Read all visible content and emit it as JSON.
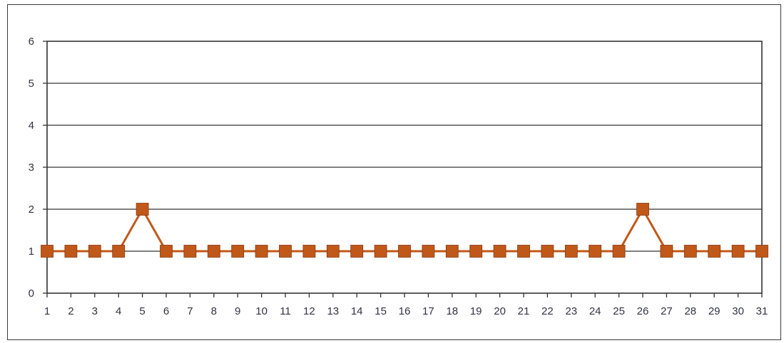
{
  "chart_data": {
    "type": "line",
    "title": "",
    "xlabel": "",
    "ylabel": "",
    "x": [
      1,
      2,
      3,
      4,
      5,
      6,
      7,
      8,
      9,
      10,
      11,
      12,
      13,
      14,
      15,
      16,
      17,
      18,
      19,
      20,
      21,
      22,
      23,
      24,
      25,
      26,
      27,
      28,
      29,
      30,
      31
    ],
    "series": [
      {
        "values": [
          1,
          1,
          1,
          1,
          2,
          1,
          1,
          1,
          1,
          1,
          1,
          1,
          1,
          1,
          1,
          1,
          1,
          1,
          1,
          1,
          1,
          1,
          1,
          1,
          1,
          2,
          1,
          1,
          1,
          1,
          1
        ],
        "color": "#c0581a",
        "marker": "square"
      }
    ],
    "ylim": [
      0,
      6
    ],
    "yticks": [
      0,
      1,
      2,
      3,
      4,
      5,
      6
    ],
    "grid": true,
    "legend": "none"
  }
}
